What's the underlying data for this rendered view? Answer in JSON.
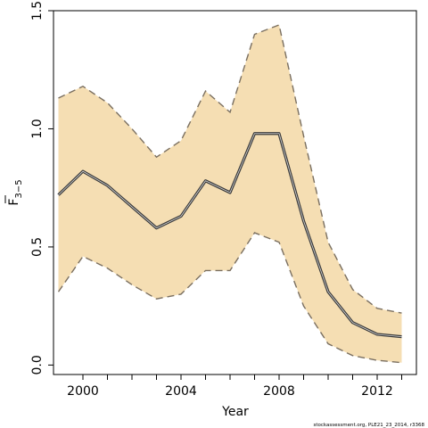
{
  "chart_data": {
    "type": "line",
    "xlabel": "Year",
    "ylabel": "F",
    "ylabel_subscript": "3−5",
    "xlim": [
      1998.8,
      2013.6
    ],
    "ylim": [
      -0.04,
      1.5
    ],
    "x_ticks": [
      2000,
      2001,
      2002,
      2003,
      2004,
      2005,
      2006,
      2007,
      2008,
      2009,
      2010,
      2011,
      2012,
      2013
    ],
    "x_tick_labels": [
      {
        "value": 2000,
        "label": "2000"
      },
      {
        "value": 2004,
        "label": "2004"
      },
      {
        "value": 2008,
        "label": "2008"
      },
      {
        "value": 2012,
        "label": "2012"
      }
    ],
    "y_ticks": [
      {
        "value": 0.0,
        "label": "0.0"
      },
      {
        "value": 0.5,
        "label": "0.5"
      },
      {
        "value": 1.0,
        "label": "1.0"
      },
      {
        "value": 1.5,
        "label": "1.5"
      }
    ],
    "x": [
      1999,
      2000,
      2001,
      2002,
      2003,
      2004,
      2005,
      2006,
      2007,
      2008,
      2009,
      2010,
      2011,
      2012,
      2013
    ],
    "series": [
      {
        "values": [
          0.72,
          0.82,
          0.76,
          0.67,
          0.58,
          0.63,
          0.78,
          0.73,
          0.98,
          0.98,
          0.61,
          0.31,
          0.18,
          0.13,
          0.12
        ]
      }
    ],
    "band_upper": [
      1.13,
      1.18,
      1.11,
      1.0,
      0.88,
      0.95,
      1.16,
      1.07,
      1.4,
      1.44,
      0.97,
      0.52,
      0.32,
      0.24,
      0.22
    ],
    "band_lower": [
      0.31,
      0.46,
      0.41,
      0.34,
      0.28,
      0.3,
      0.4,
      0.4,
      0.56,
      0.52,
      0.25,
      0.09,
      0.04,
      0.02,
      0.01
    ],
    "grid": false,
    "colors": {
      "band_fill": "#f5deb3",
      "band_edge": "#7a6f60",
      "line": "#3a3a3a"
    }
  },
  "footer_text": "stockassessment.org, PLE21_23_2014, r3368"
}
